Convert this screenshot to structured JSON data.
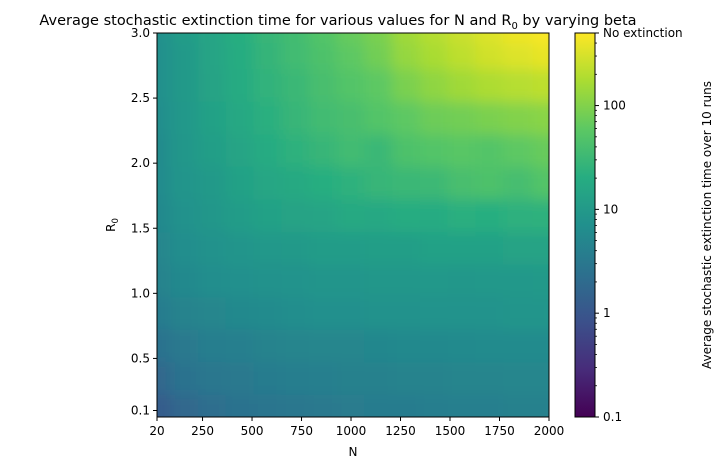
{
  "chart_data": {
    "type": "heatmap",
    "title": {
      "main": "Average stochastic extinction time for various values for N and R",
      "sub": "0",
      "tail": " by varying beta"
    },
    "xlabel": "N",
    "ylabel": {
      "main": "R",
      "sub": "0"
    },
    "xlim": [
      20,
      2000
    ],
    "ylim": [
      0.05,
      3.0
    ],
    "x_ticks": [
      20,
      250,
      500,
      750,
      1000,
      1250,
      1500,
      1750,
      2000
    ],
    "x_tick_labels": [
      "20",
      "250",
      "500",
      "750",
      "1000",
      "1250",
      "1500",
      "1750",
      "2000"
    ],
    "y_ticks": [
      0.1,
      0.5,
      1.0,
      1.5,
      2.0,
      2.5,
      3.0
    ],
    "y_tick_labels": [
      "0.1",
      "0.5",
      "1.0",
      "1.5",
      "2.0",
      "2.5",
      "3.0"
    ],
    "grid": false,
    "colormap": "viridis",
    "colorbar": {
      "label": "Average stochastic extinction time over 10 runs",
      "scale": "log",
      "range": [
        0.1,
        500
      ],
      "ticks": [
        0.1,
        1,
        10,
        100,
        500
      ],
      "tick_labels": [
        "0.1",
        "1",
        "10",
        "100",
        "No extinction"
      ]
    },
    "x_centers": [
      20,
      160,
      300,
      440,
      580,
      720,
      860,
      1000,
      1140,
      1280,
      1420,
      1560,
      1700,
      1840,
      2000
    ],
    "y_centers": [
      0.1,
      0.35,
      0.6,
      0.85,
      1.1,
      1.35,
      1.6,
      1.85,
      2.1,
      2.35,
      2.6,
      2.85,
      3.0
    ],
    "z": [
      [
        1.2,
        1.8,
        2.2,
        2.5,
        2.8,
        3.0,
        3.2,
        3.4,
        3.5,
        3.6,
        3.8,
        4.0,
        4.0,
        4.2,
        4.2
      ],
      [
        1.8,
        2.5,
        3.0,
        3.2,
        3.5,
        3.8,
        4.0,
        4.2,
        4.2,
        4.5,
        4.5,
        4.8,
        4.8,
        5.0,
        5.0
      ],
      [
        2.5,
        3.2,
        3.8,
        4.0,
        4.5,
        4.8,
        5.0,
        5.0,
        5.2,
        5.5,
        5.5,
        5.8,
        6.0,
        6.0,
        6.0
      ],
      [
        3.5,
        4.5,
        5.0,
        5.5,
        6.0,
        6.5,
        7.0,
        7.0,
        7.5,
        7.5,
        8.0,
        8.0,
        8.0,
        8.5,
        8.5
      ],
      [
        4.5,
        5.5,
        6.5,
        7.0,
        7.5,
        8.0,
        8.5,
        8.5,
        9.0,
        9.0,
        9.5,
        9.0,
        9.5,
        9.5,
        10
      ],
      [
        5.0,
        6.5,
        7.5,
        8.5,
        9.5,
        10,
        11,
        11,
        12,
        12,
        13,
        13,
        13,
        14,
        14
      ],
      [
        5.5,
        7.5,
        9.0,
        11,
        13,
        14,
        15,
        18,
        17,
        20,
        19,
        22,
        21,
        23,
        24
      ],
      [
        6.0,
        8.5,
        10,
        13,
        16,
        18,
        21,
        24,
        28,
        30,
        32,
        40,
        45,
        38,
        50
      ],
      [
        6.0,
        9.0,
        12,
        15,
        19,
        24,
        28,
        35,
        30,
        45,
        50,
        55,
        50,
        60,
        70
      ],
      [
        6.5,
        9.5,
        13,
        17,
        22,
        28,
        35,
        40,
        50,
        60,
        75,
        80,
        90,
        100,
        110
      ],
      [
        7.0,
        10,
        14,
        19,
        25,
        30,
        40,
        50,
        60,
        90,
        120,
        150,
        180,
        200,
        220
      ],
      [
        7.0,
        10,
        15,
        20,
        27,
        35,
        45,
        60,
        80,
        130,
        170,
        220,
        280,
        330,
        380
      ],
      [
        7.0,
        11,
        15,
        21,
        28,
        36,
        50,
        70,
        90,
        150,
        200,
        260,
        330,
        420,
        480
      ]
    ]
  }
}
